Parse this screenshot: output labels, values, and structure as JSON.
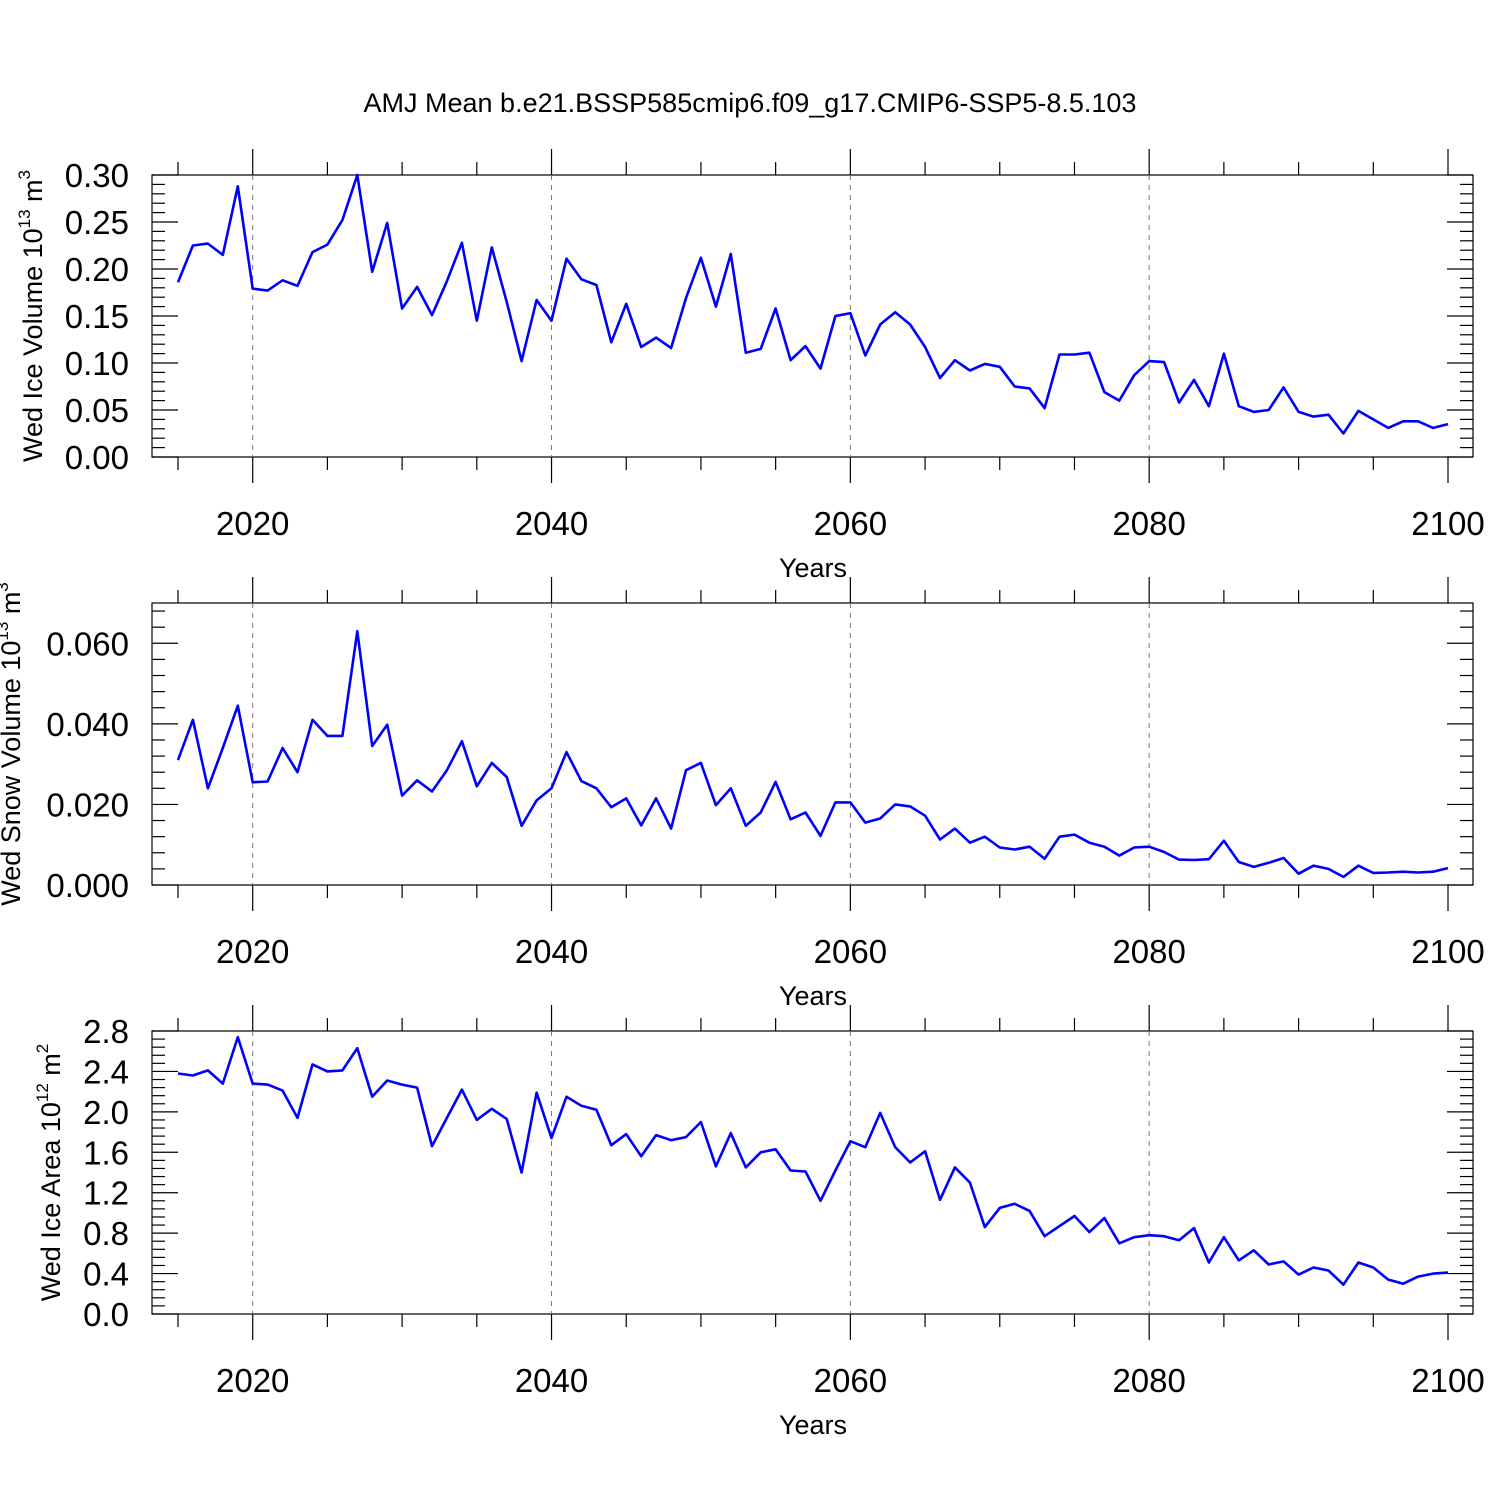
{
  "title": "AMJ Mean b.e21.BSSP585cmip6.f09_g17.CMIP6-SSP5-8.5.103",
  "line_color": "#0000ff",
  "chart_data": [
    {
      "type": "line",
      "title": "AMJ Mean b.e21.BSSP585cmip6.f09_g17.CMIP6-SSP5-8.5.103",
      "xlabel": "Years",
      "ylabel": "Wed Ice Volume 10",
      "ylabel_sup": "13",
      "ylabel_unit": " m",
      "ylabel_unit_sup": "3",
      "xlim": [
        2015,
        2100
      ],
      "ylim": [
        0,
        0.3
      ],
      "xticks": [
        2020,
        2040,
        2060,
        2080,
        2100
      ],
      "xtick_labels": [
        "2020",
        "2040",
        "2060",
        "2080",
        "2100"
      ],
      "yticks": [
        0,
        0.05,
        0.1,
        0.15,
        0.2,
        0.25,
        0.3
      ],
      "ytick_labels": [
        "0.00",
        "0.05",
        "0.10",
        "0.15",
        "0.20",
        "0.25",
        "0.30"
      ],
      "grid": "dashed vertical lines at major x ticks",
      "series": [
        {
          "x_start": 2015,
          "values": [
            0.186,
            0.225,
            0.227,
            0.215,
            0.288,
            0.179,
            0.177,
            0.188,
            0.182,
            0.218,
            0.226,
            0.252,
            0.3,
            0.197,
            0.249,
            0.158,
            0.181,
            0.151,
            0.187,
            0.228,
            0.145,
            0.223,
            0.165,
            0.102,
            0.167,
            0.145,
            0.211,
            0.189,
            0.183,
            0.122,
            0.163,
            0.117,
            0.127,
            0.116,
            0.169,
            0.212,
            0.16,
            0.216,
            0.111,
            0.115,
            0.158,
            0.103,
            0.118,
            0.094,
            0.15,
            0.153,
            0.108,
            0.141,
            0.154,
            0.141,
            0.117,
            0.084,
            0.103,
            0.092,
            0.099,
            0.096,
            0.075,
            0.073,
            0.052,
            0.109,
            0.109,
            0.111,
            0.069,
            0.06,
            0.087,
            0.102,
            0.101,
            0.058,
            0.082,
            0.054,
            0.11,
            0.054,
            0.048,
            0.05,
            0.074,
            0.048,
            0.043,
            0.045,
            0.025,
            0.049,
            0.04,
            0.031,
            0.038,
            0.038,
            0.031,
            0.035
          ]
        }
      ]
    },
    {
      "type": "line",
      "xlabel": "Years",
      "ylabel": "Wed Snow Volume 10",
      "ylabel_sup": "13",
      "ylabel_unit": " m",
      "ylabel_unit_sup": "3",
      "xlim": [
        2015,
        2100
      ],
      "ylim": [
        0,
        0.07
      ],
      "xticks": [
        2020,
        2040,
        2060,
        2080,
        2100
      ],
      "xtick_labels": [
        "2020",
        "2040",
        "2060",
        "2080",
        "2100"
      ],
      "yticks": [
        0,
        0.02,
        0.04,
        0.06
      ],
      "ytick_labels": [
        "0.000",
        "0.020",
        "0.040",
        "0.060"
      ],
      "grid": "dashed vertical lines at major x ticks",
      "series": [
        {
          "x_start": 2015,
          "values": [
            0.031,
            0.041,
            0.024,
            0.034,
            0.0445,
            0.0255,
            0.0257,
            0.034,
            0.028,
            0.041,
            0.037,
            0.037,
            0.063,
            0.0345,
            0.0398,
            0.0222,
            0.026,
            0.0232,
            0.0285,
            0.0357,
            0.0245,
            0.0303,
            0.0268,
            0.0147,
            0.021,
            0.024,
            0.033,
            0.0258,
            0.024,
            0.0193,
            0.0215,
            0.0148,
            0.0215,
            0.014,
            0.0285,
            0.0303,
            0.0198,
            0.024,
            0.0147,
            0.018,
            0.0256,
            0.0163,
            0.018,
            0.0122,
            0.0205,
            0.0205,
            0.0155,
            0.0165,
            0.02,
            0.0195,
            0.0172,
            0.0113,
            0.014,
            0.0105,
            0.012,
            0.0093,
            0.0088,
            0.0095,
            0.0065,
            0.012,
            0.0125,
            0.0105,
            0.0095,
            0.0073,
            0.0093,
            0.0095,
            0.0082,
            0.0063,
            0.0062,
            0.0064,
            0.011,
            0.0057,
            0.0045,
            0.0055,
            0.0067,
            0.0028,
            0.0048,
            0.004,
            0.002,
            0.0048,
            0.003,
            0.0031,
            0.0033,
            0.0031,
            0.0033,
            0.0042
          ]
        }
      ]
    },
    {
      "type": "line",
      "xlabel": "Years",
      "ylabel": "Wed Ice Area 10",
      "ylabel_sup": "12",
      "ylabel_unit": " m",
      "ylabel_unit_sup": "2",
      "xlim": [
        2015,
        2100
      ],
      "ylim": [
        0,
        2.8
      ],
      "xticks": [
        2020,
        2040,
        2060,
        2080,
        2100
      ],
      "xtick_labels": [
        "2020",
        "2040",
        "2060",
        "2080",
        "2100"
      ],
      "yticks": [
        0,
        0.4,
        0.8,
        1.2,
        1.6,
        2.0,
        2.4,
        2.8
      ],
      "ytick_labels": [
        "0.0",
        "0.4",
        "0.8",
        "1.2",
        "1.6",
        "2.0",
        "2.4",
        "2.8"
      ],
      "grid": "dashed vertical lines at major x ticks",
      "series": [
        {
          "x_start": 2015,
          "values": [
            2.38,
            2.36,
            2.41,
            2.28,
            2.74,
            2.28,
            2.27,
            2.21,
            1.94,
            2.47,
            2.4,
            2.41,
            2.63,
            2.15,
            2.31,
            2.27,
            2.24,
            1.66,
            1.94,
            2.22,
            1.92,
            2.03,
            1.93,
            1.4,
            2.19,
            1.74,
            2.15,
            2.06,
            2.02,
            1.67,
            1.78,
            1.56,
            1.77,
            1.72,
            1.75,
            1.9,
            1.46,
            1.79,
            1.45,
            1.6,
            1.63,
            1.42,
            1.41,
            1.12,
            1.42,
            1.71,
            1.65,
            1.99,
            1.65,
            1.5,
            1.61,
            1.13,
            1.45,
            1.3,
            0.86,
            1.05,
            1.09,
            1.02,
            0.77,
            0.87,
            0.97,
            0.81,
            0.95,
            0.7,
            0.76,
            0.78,
            0.77,
            0.73,
            0.85,
            0.51,
            0.76,
            0.53,
            0.63,
            0.49,
            0.52,
            0.39,
            0.46,
            0.43,
            0.29,
            0.51,
            0.46,
            0.34,
            0.3,
            0.37,
            0.4,
            0.41
          ]
        }
      ]
    }
  ]
}
